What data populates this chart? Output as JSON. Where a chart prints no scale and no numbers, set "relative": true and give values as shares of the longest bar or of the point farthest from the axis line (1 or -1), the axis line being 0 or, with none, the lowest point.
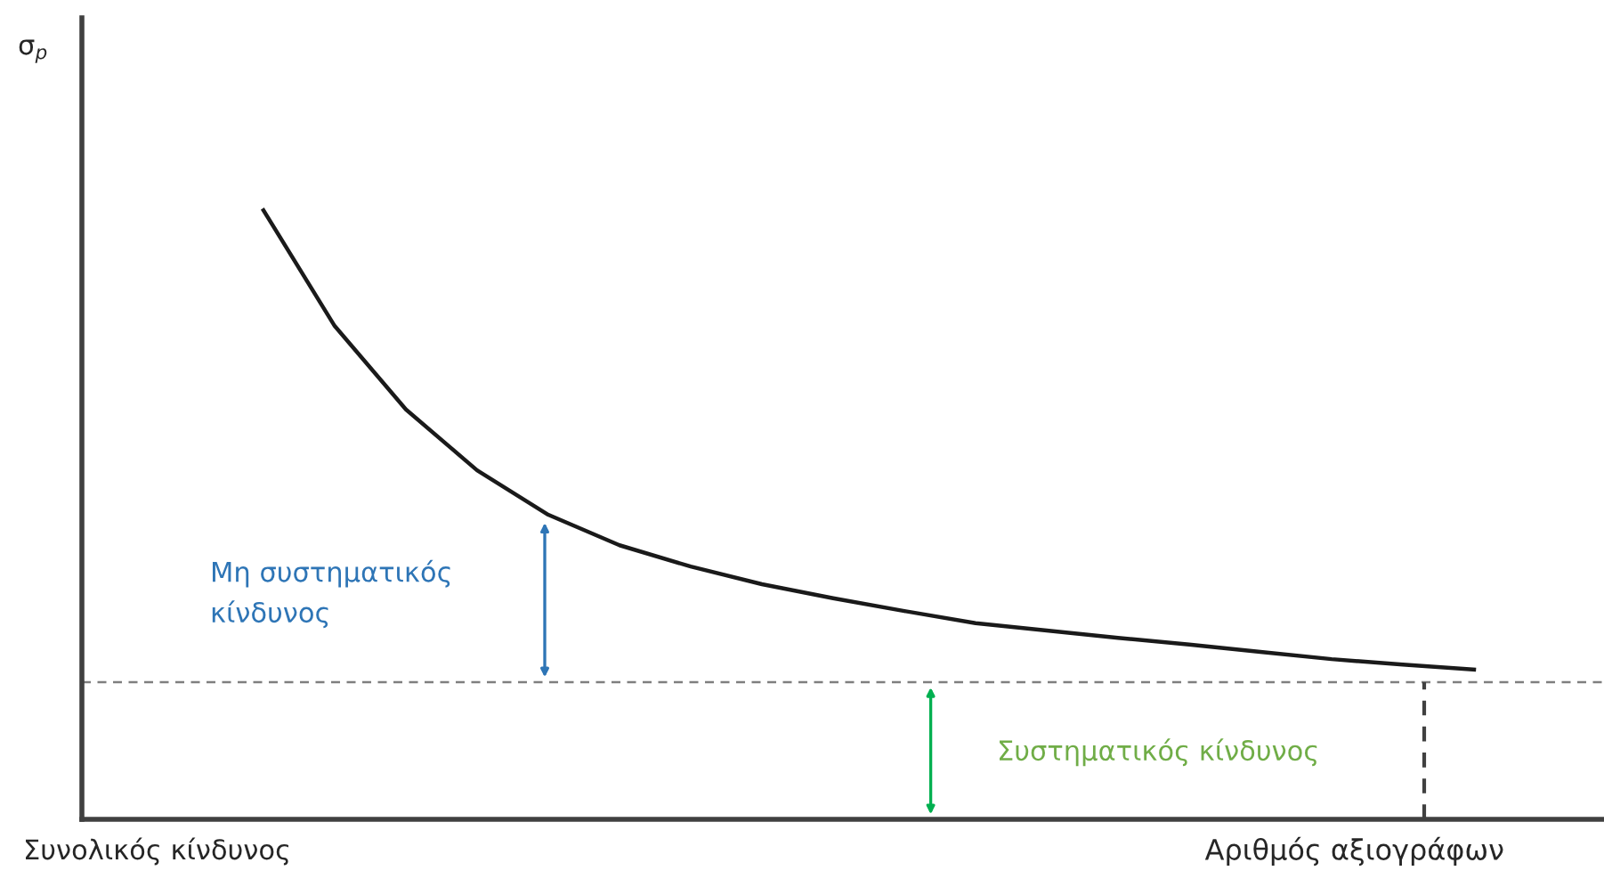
{
  "chart_data": {
    "type": "line",
    "relative": true,
    "xlabel": "Αριθμός αξιογράφων",
    "categories": [
      null,
      null,
      null,
      null,
      null,
      null,
      null,
      null,
      null,
      null,
      null,
      null,
      null,
      null,
      null,
      null,
      null,
      null
    ],
    "series": [
      {
        "color": "#1a1a1a",
        "values": [
          1,
          0.81,
          0.673,
          0.573,
          0.5,
          0.45,
          0.415,
          0.386,
          0.363,
          0.342,
          0.322,
          0.31,
          0.298,
          0.287,
          0.275,
          0.263,
          0.254,
          0.246
        ]
      }
    ],
    "ref_lines": [
      {
        "axis": "y",
        "value": 0.225,
        "color": "#7f7f7f",
        "line_style": "dashed"
      }
    ],
    "annotations": [
      "Μη συστηματικός\nκίνδυνος",
      "Συστηματικός κίνδυνος",
      "Συνολικός κίνδυνος",
      "σ$_{p}$"
    ],
    "grid": false,
    "legend": false
  }
}
